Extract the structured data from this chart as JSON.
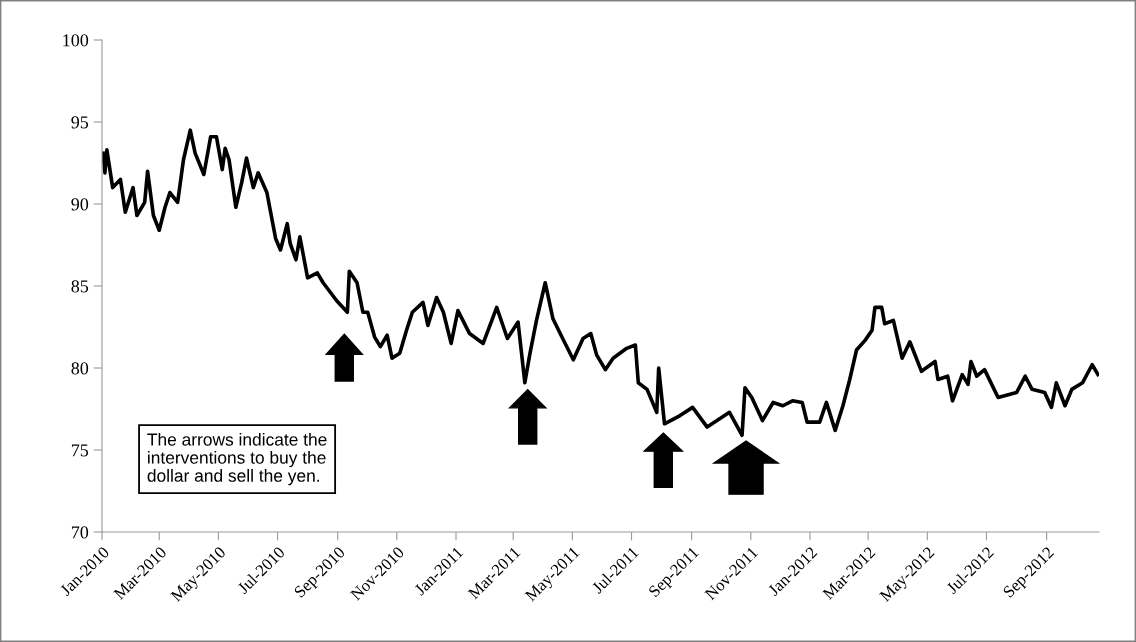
{
  "chart_data": {
    "type": "line",
    "x": [
      "2010-01-02",
      "2010-01-04",
      "2010-01-06",
      "2010-01-12",
      "2010-01-20",
      "2010-01-25",
      "2010-02-02",
      "2010-02-06",
      "2010-02-14",
      "2010-02-17",
      "2010-02-23",
      "2010-03-01",
      "2010-03-07",
      "2010-03-12",
      "2010-03-20",
      "2010-03-26",
      "2010-04-02",
      "2010-04-07",
      "2010-04-16",
      "2010-04-23",
      "2010-04-29",
      "2010-05-05",
      "2010-05-08",
      "2010-05-12",
      "2010-05-19",
      "2010-05-25",
      "2010-05-30",
      "2010-06-06",
      "2010-06-11",
      "2010-06-20",
      "2010-06-29",
      "2010-07-04",
      "2010-07-11",
      "2010-07-14",
      "2010-07-20",
      "2010-07-24",
      "2010-08-01",
      "2010-08-11",
      "2010-08-17",
      "2010-08-31",
      "2010-09-11",
      "2010-09-13",
      "2010-09-21",
      "2010-09-27",
      "2010-10-02",
      "2010-10-09",
      "2010-10-15",
      "2010-10-22",
      "2010-10-27",
      "2010-11-04",
      "2010-11-11",
      "2010-11-17",
      "2010-11-28",
      "2010-12-03",
      "2010-12-12",
      "2010-12-19",
      "2010-12-27",
      "2011-01-03",
      "2011-01-15",
      "2011-01-29",
      "2011-02-12",
      "2011-02-23",
      "2011-03-06",
      "2011-03-13",
      "2011-03-18",
      "2011-03-25",
      "2011-04-03",
      "2011-04-11",
      "2011-04-21",
      "2011-05-02",
      "2011-05-12",
      "2011-05-20",
      "2011-05-26",
      "2011-06-04",
      "2011-06-12",
      "2011-06-26",
      "2011-07-05",
      "2011-07-08",
      "2011-07-17",
      "2011-07-27",
      "2011-07-29",
      "2011-08-04",
      "2011-08-20",
      "2011-09-02",
      "2011-09-17",
      "2011-10-10",
      "2011-10-23",
      "2011-10-26",
      "2011-11-02",
      "2011-11-13",
      "2011-11-24",
      "2011-12-04",
      "2011-12-14",
      "2011-12-24",
      "2011-12-29",
      "2012-01-11",
      "2012-01-18",
      "2012-01-27",
      "2012-02-04",
      "2012-02-11",
      "2012-02-18",
      "2012-02-27",
      "2012-03-05",
      "2012-03-08",
      "2012-03-15",
      "2012-03-18",
      "2012-03-27",
      "2012-04-05",
      "2012-04-13",
      "2012-04-25",
      "2012-05-09",
      "2012-05-12",
      "2012-05-22",
      "2012-05-27",
      "2012-06-06",
      "2012-06-12",
      "2012-06-15",
      "2012-06-21",
      "2012-06-29",
      "2012-07-13",
      "2012-08-01",
      "2012-08-10",
      "2012-08-17",
      "2012-08-30",
      "2012-09-06",
      "2012-09-11",
      "2012-09-20",
      "2012-09-27",
      "2012-10-08",
      "2012-10-18",
      "2012-10-24"
    ],
    "series": [
      {
        "color": "#000000",
        "values": [
          93.1,
          91.9,
          93.3,
          91.0,
          91.5,
          89.5,
          91.0,
          89.3,
          90.1,
          92.0,
          89.3,
          88.4,
          89.8,
          90.7,
          90.1,
          92.7,
          94.5,
          93.1,
          91.8,
          94.1,
          94.1,
          92.1,
          93.4,
          92.7,
          89.8,
          91.3,
          92.8,
          91.0,
          91.9,
          90.7,
          87.9,
          87.2,
          88.8,
          87.6,
          86.6,
          88.0,
          85.5,
          85.8,
          85.2,
          84.1,
          83.4,
          85.9,
          85.2,
          83.4,
          83.4,
          81.9,
          81.3,
          82.0,
          80.6,
          80.9,
          82.3,
          83.4,
          84.0,
          82.6,
          84.3,
          83.4,
          81.5,
          83.5,
          82.1,
          81.5,
          83.7,
          81.8,
          82.8,
          79.1,
          80.8,
          82.9,
          85.2,
          83.0,
          81.8,
          80.5,
          81.8,
          82.1,
          80.8,
          79.9,
          80.6,
          81.2,
          81.4,
          79.1,
          78.7,
          77.3,
          80.0,
          76.6,
          77.1,
          77.6,
          76.4,
          77.3,
          75.9,
          78.8,
          78.2,
          76.8,
          77.9,
          77.7,
          78.0,
          77.9,
          76.7,
          76.7,
          77.9,
          76.2,
          77.7,
          79.3,
          81.1,
          81.7,
          82.3,
          83.7,
          83.7,
          82.7,
          82.9,
          80.6,
          81.6,
          79.8,
          80.4,
          79.3,
          79.5,
          78.0,
          79.6,
          79.0,
          80.4,
          79.5,
          79.9,
          78.2,
          78.5,
          79.5,
          78.7,
          78.5,
          77.6,
          79.1,
          77.7,
          78.7,
          79.1,
          80.2,
          79.6
        ]
      }
    ],
    "xlim": [
      "2010-01-01",
      "2012-10-25"
    ],
    "xticks": [
      {
        "value": "2010-01-01",
        "label": "Jan-2010"
      },
      {
        "value": "2010-03-01",
        "label": "Mar-2010"
      },
      {
        "value": "2010-05-01",
        "label": "May-2010"
      },
      {
        "value": "2010-07-01",
        "label": "Jul-2010"
      },
      {
        "value": "2010-09-01",
        "label": "Sep-2010"
      },
      {
        "value": "2010-11-01",
        "label": "Nov-2010"
      },
      {
        "value": "2011-01-01",
        "label": "Jan-2011"
      },
      {
        "value": "2011-03-01",
        "label": "Mar-2011"
      },
      {
        "value": "2011-05-01",
        "label": "May-2011"
      },
      {
        "value": "2011-07-01",
        "label": "Jul-2011"
      },
      {
        "value": "2011-09-01",
        "label": "Sep-2011"
      },
      {
        "value": "2011-11-01",
        "label": "Nov-2011"
      },
      {
        "value": "2012-01-01",
        "label": "Jan-2012"
      },
      {
        "value": "2012-03-01",
        "label": "Mar-2012"
      },
      {
        "value": "2012-05-01",
        "label": "May-2012"
      },
      {
        "value": "2012-07-01",
        "label": "Jul-2012"
      },
      {
        "value": "2012-09-01",
        "label": "Sep-2012"
      }
    ],
    "ylim": [
      70,
      100
    ],
    "yticks": [
      70,
      75,
      80,
      85,
      90,
      95,
      100
    ],
    "grid": false,
    "legend": false,
    "marker": "none",
    "line_style": "solid",
    "annotations": [
      "The arrows indicate the\ninterventions to buy the\ndollar and sell the yen."
    ]
  }
}
